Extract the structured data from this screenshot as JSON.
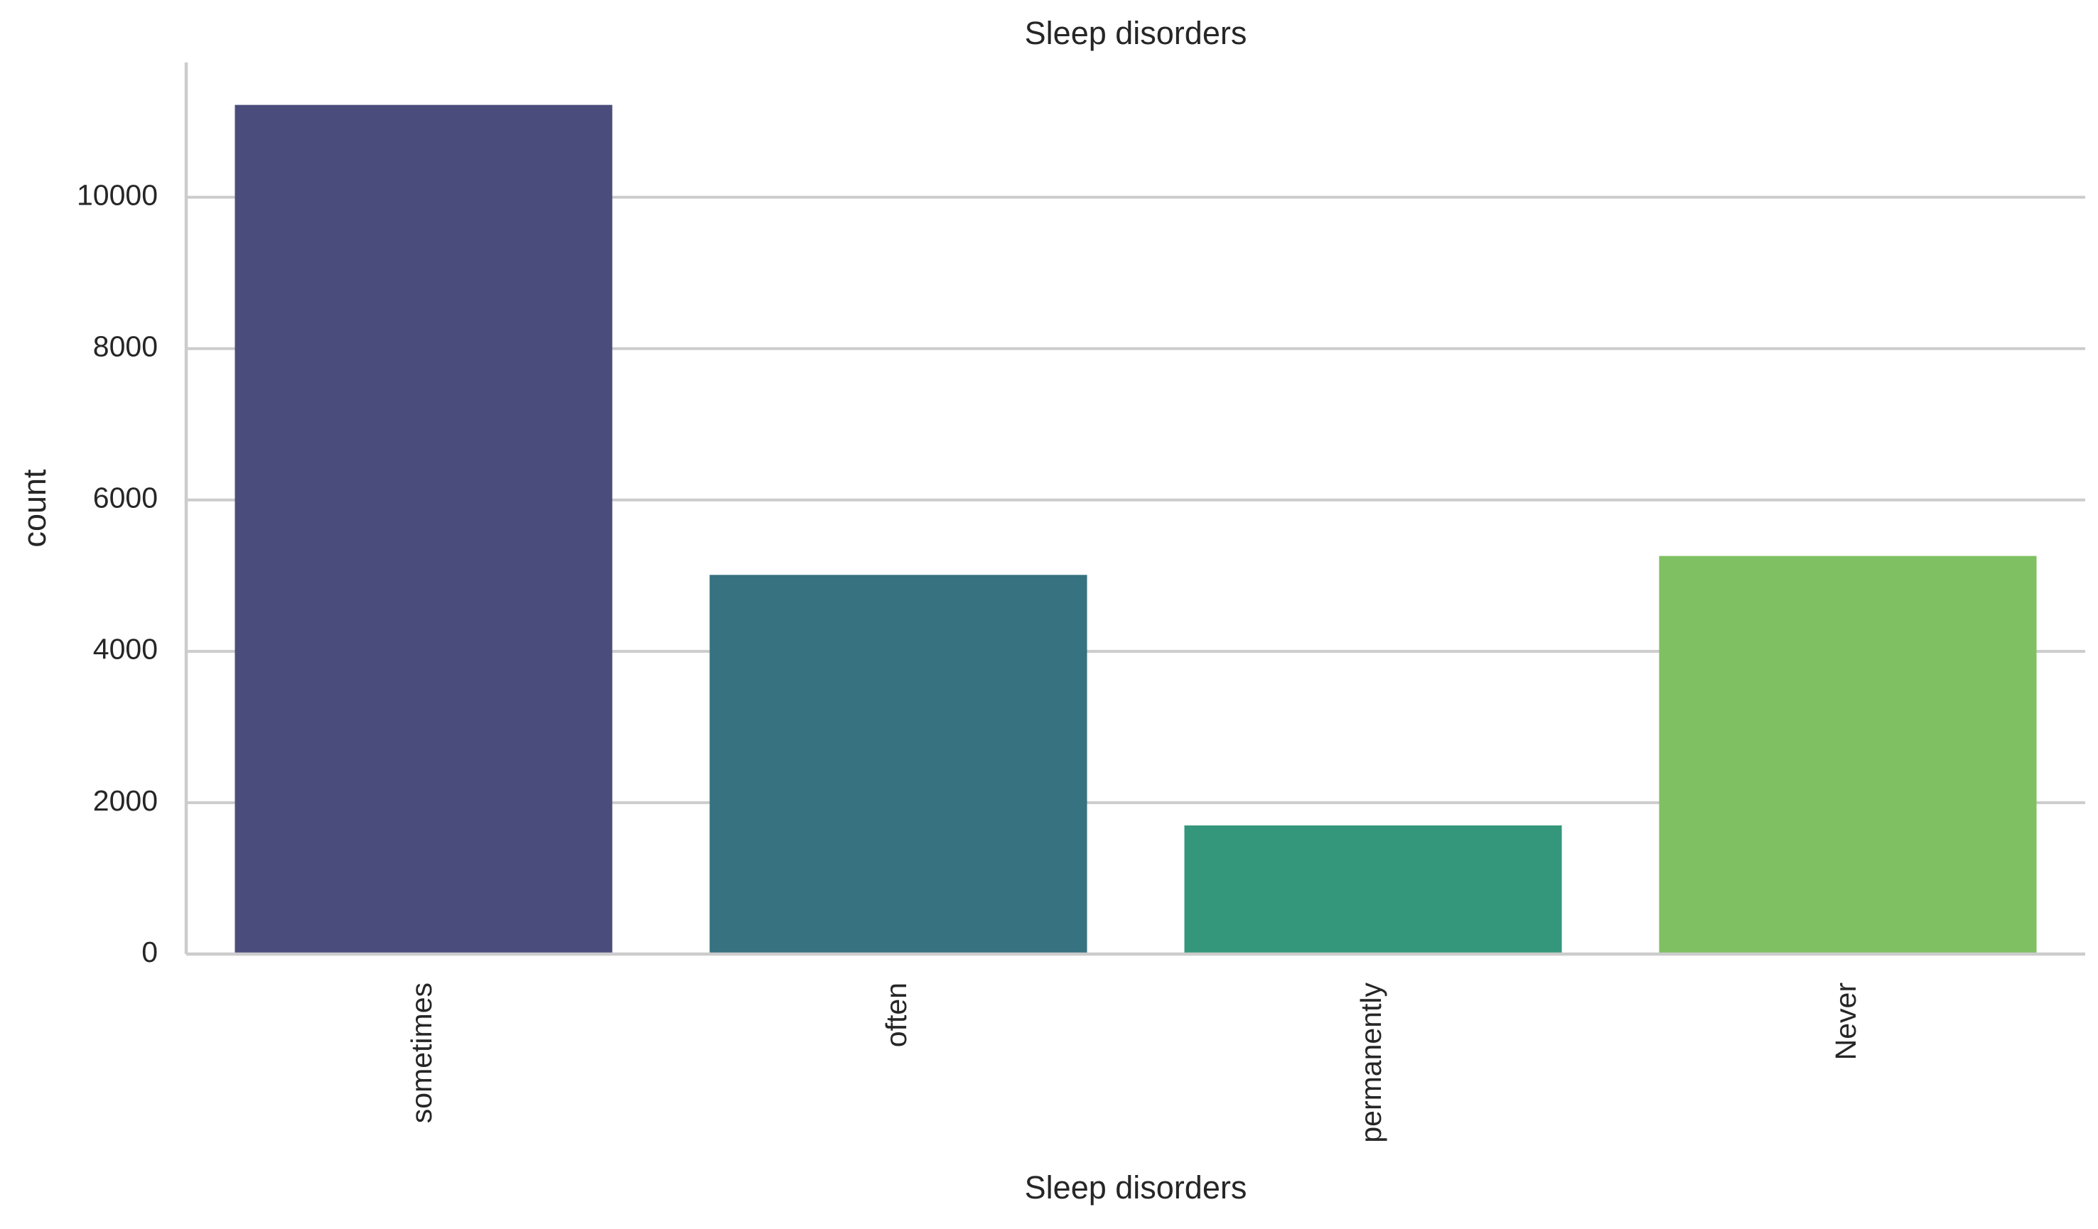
{
  "chart_data": {
    "type": "bar",
    "title": "Sleep disorders",
    "xlabel": "Sleep disorders",
    "ylabel": "count",
    "categories": [
      "sometimes",
      "often",
      "permanently",
      "Never"
    ],
    "values": [
      11220,
      5010,
      1700,
      5260
    ],
    "colors": [
      "#4a4d7c",
      "#36727f",
      "#34977b",
      "#7fc062"
    ],
    "yticks": [
      0,
      2000,
      4000,
      6000,
      8000,
      10000
    ],
    "ytick_labels": [
      "0",
      "2000",
      "4000",
      "6000",
      "8000",
      "10000"
    ],
    "ylim": [
      0,
      11780
    ],
    "grid": "horizontal",
    "gridline_color": "#cccccc",
    "x_tick_rotation": "vertical"
  }
}
